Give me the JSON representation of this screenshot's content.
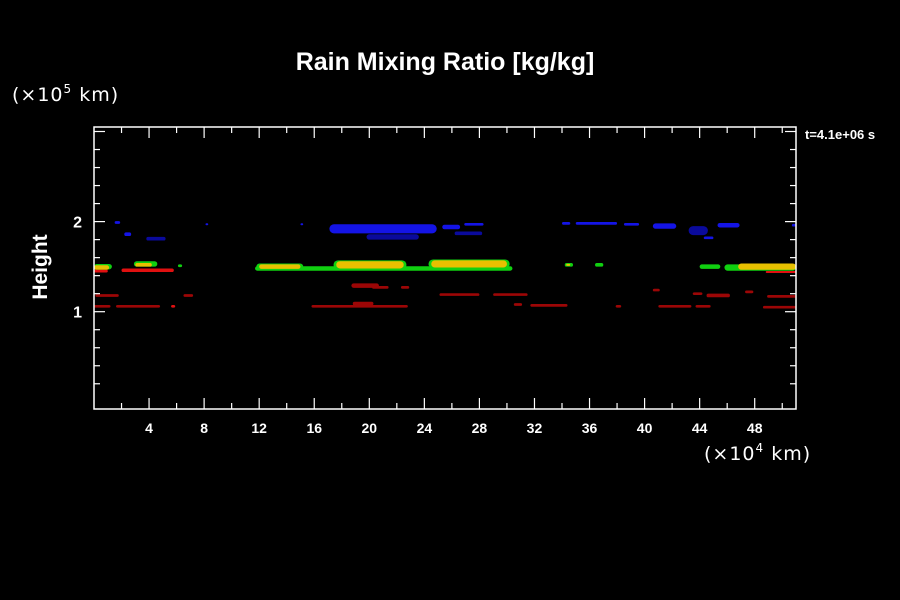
{
  "chart_data": {
    "type": "heatmap",
    "title": "Rain Mixing Ratio [kg/kg]",
    "xlabel_prefix": "(×10",
    "xlabel_exp": "4",
    "xlabel_suffix": " km)",
    "ylabel": "Height",
    "yunit_prefix": "(×10",
    "yunit_exp": "5",
    "yunit_suffix": " km)",
    "annotation": "t=4.1e+06 s",
    "xlim": [
      0,
      51
    ],
    "ylim": [
      -0.08,
      3.05
    ],
    "xticks": [
      "4",
      "8",
      "12",
      "16",
      "20",
      "24",
      "28",
      "32",
      "36",
      "40",
      "44",
      "48"
    ],
    "yticks": [
      "1",
      "2"
    ],
    "colors": {
      "blue": "#1414e6",
      "darkblue": "#0a0a9c",
      "green": "#10d010",
      "yellow": "#e8c000",
      "red": "#e01010",
      "darkred": "#9c0606",
      "axis": "#ffffff",
      "background": "#000000"
    },
    "features": [
      {
        "x0": 17.1,
        "x1": 24.9,
        "y": 1.92,
        "h": 0.1,
        "c": "blue"
      },
      {
        "x0": 19.8,
        "x1": 23.6,
        "y": 1.83,
        "h": 0.06,
        "c": "darkblue"
      },
      {
        "x0": 3.8,
        "x1": 5.2,
        "y": 1.81,
        "h": 0.04,
        "c": "darkblue"
      },
      {
        "x0": 1.5,
        "x1": 1.9,
        "y": 1.99,
        "h": 0.03,
        "c": "blue"
      },
      {
        "x0": 2.2,
        "x1": 2.7,
        "y": 1.86,
        "h": 0.04,
        "c": "blue"
      },
      {
        "x0": 8.1,
        "x1": 8.3,
        "y": 1.97,
        "h": 0.02,
        "c": "blue"
      },
      {
        "x0": 15.0,
        "x1": 15.2,
        "y": 1.97,
        "h": 0.02,
        "c": "blue"
      },
      {
        "x0": 25.3,
        "x1": 26.6,
        "y": 1.94,
        "h": 0.05,
        "c": "blue"
      },
      {
        "x0": 26.9,
        "x1": 28.3,
        "y": 1.97,
        "h": 0.03,
        "c": "blue"
      },
      {
        "x0": 26.2,
        "x1": 28.2,
        "y": 1.87,
        "h": 0.04,
        "c": "darkblue"
      },
      {
        "x0": 34.0,
        "x1": 34.6,
        "y": 1.98,
        "h": 0.03,
        "c": "blue"
      },
      {
        "x0": 35.0,
        "x1": 38.0,
        "y": 1.98,
        "h": 0.03,
        "c": "blue"
      },
      {
        "x0": 38.5,
        "x1": 39.6,
        "y": 1.97,
        "h": 0.03,
        "c": "blue"
      },
      {
        "x0": 40.6,
        "x1": 42.3,
        "y": 1.95,
        "h": 0.06,
        "c": "blue"
      },
      {
        "x0": 43.2,
        "x1": 44.6,
        "y": 1.9,
        "h": 0.1,
        "c": "darkblue"
      },
      {
        "x0": 44.3,
        "x1": 45.0,
        "y": 1.82,
        "h": 0.03,
        "c": "blue"
      },
      {
        "x0": 45.3,
        "x1": 46.9,
        "y": 1.96,
        "h": 0.05,
        "c": "blue"
      },
      {
        "x0": 50.7,
        "x1": 51.0,
        "y": 1.96,
        "h": 0.03,
        "c": "blue"
      },
      {
        "x0": 0.0,
        "x1": 1.0,
        "y": 1.45,
        "h": 0.03,
        "c": "red"
      },
      {
        "x0": 0.0,
        "x1": 1.3,
        "y": 1.5,
        "h": 0.06,
        "c": "green"
      },
      {
        "x0": 0.0,
        "x1": 1.1,
        "y": 1.49,
        "h": 0.05,
        "c": "yellow"
      },
      {
        "x0": 2.0,
        "x1": 5.8,
        "y": 1.46,
        "h": 0.04,
        "c": "red"
      },
      {
        "x0": 2.9,
        "x1": 4.6,
        "y": 1.53,
        "h": 0.06,
        "c": "green"
      },
      {
        "x0": 3.0,
        "x1": 4.2,
        "y": 1.52,
        "h": 0.04,
        "c": "yellow"
      },
      {
        "x0": 6.1,
        "x1": 6.4,
        "y": 1.51,
        "h": 0.03,
        "c": "green"
      },
      {
        "x0": 11.7,
        "x1": 30.4,
        "y": 1.48,
        "h": 0.05,
        "c": "green"
      },
      {
        "x0": 11.8,
        "x1": 15.2,
        "y": 1.5,
        "h": 0.07,
        "c": "green"
      },
      {
        "x0": 12.0,
        "x1": 15.0,
        "y": 1.5,
        "h": 0.05,
        "c": "yellow"
      },
      {
        "x0": 17.4,
        "x1": 22.7,
        "y": 1.52,
        "h": 0.1,
        "c": "green"
      },
      {
        "x0": 17.6,
        "x1": 22.5,
        "y": 1.52,
        "h": 0.08,
        "c": "yellow"
      },
      {
        "x0": 24.3,
        "x1": 30.2,
        "y": 1.53,
        "h": 0.1,
        "c": "green"
      },
      {
        "x0": 24.5,
        "x1": 30.0,
        "y": 1.53,
        "h": 0.08,
        "c": "yellow"
      },
      {
        "x0": 34.2,
        "x1": 34.8,
        "y": 1.52,
        "h": 0.04,
        "c": "green"
      },
      {
        "x0": 34.3,
        "x1": 34.6,
        "y": 1.52,
        "h": 0.02,
        "c": "yellow"
      },
      {
        "x0": 36.4,
        "x1": 37.0,
        "y": 1.52,
        "h": 0.04,
        "c": "green"
      },
      {
        "x0": 44.0,
        "x1": 45.5,
        "y": 1.5,
        "h": 0.05,
        "c": "green"
      },
      {
        "x0": 45.8,
        "x1": 51.0,
        "y": 1.49,
        "h": 0.07,
        "c": "green"
      },
      {
        "x0": 46.8,
        "x1": 51.0,
        "y": 1.5,
        "h": 0.07,
        "c": "yellow"
      },
      {
        "x0": 48.8,
        "x1": 51.0,
        "y": 1.44,
        "h": 0.02,
        "c": "red"
      },
      {
        "x0": 0.1,
        "x1": 1.8,
        "y": 1.18,
        "h": 0.03,
        "c": "darkred"
      },
      {
        "x0": 6.5,
        "x1": 7.2,
        "y": 1.18,
        "h": 0.03,
        "c": "darkred"
      },
      {
        "x0": 18.7,
        "x1": 20.7,
        "y": 1.29,
        "h": 0.05,
        "c": "darkred"
      },
      {
        "x0": 20.2,
        "x1": 21.4,
        "y": 1.27,
        "h": 0.03,
        "c": "darkred"
      },
      {
        "x0": 22.3,
        "x1": 22.9,
        "y": 1.27,
        "h": 0.03,
        "c": "darkred"
      },
      {
        "x0": 25.1,
        "x1": 28.0,
        "y": 1.19,
        "h": 0.03,
        "c": "darkred"
      },
      {
        "x0": 29.0,
        "x1": 31.5,
        "y": 1.19,
        "h": 0.03,
        "c": "darkred"
      },
      {
        "x0": 40.6,
        "x1": 41.1,
        "y": 1.24,
        "h": 0.03,
        "c": "darkred"
      },
      {
        "x0": 43.5,
        "x1": 44.2,
        "y": 1.2,
        "h": 0.03,
        "c": "darkred"
      },
      {
        "x0": 44.5,
        "x1": 46.2,
        "y": 1.18,
        "h": 0.04,
        "c": "darkred"
      },
      {
        "x0": 47.3,
        "x1": 47.9,
        "y": 1.22,
        "h": 0.03,
        "c": "darkred"
      },
      {
        "x0": 48.9,
        "x1": 51.0,
        "y": 1.17,
        "h": 0.03,
        "c": "darkred"
      },
      {
        "x0": 0.0,
        "x1": 1.2,
        "y": 1.06,
        "h": 0.03,
        "c": "darkred"
      },
      {
        "x0": 1.6,
        "x1": 4.8,
        "y": 1.06,
        "h": 0.03,
        "c": "darkred"
      },
      {
        "x0": 5.6,
        "x1": 5.9,
        "y": 1.06,
        "h": 0.03,
        "c": "red"
      },
      {
        "x0": 15.8,
        "x1": 22.8,
        "y": 1.06,
        "h": 0.03,
        "c": "darkred"
      },
      {
        "x0": 18.8,
        "x1": 20.3,
        "y": 1.09,
        "h": 0.04,
        "c": "darkred"
      },
      {
        "x0": 30.5,
        "x1": 31.1,
        "y": 1.08,
        "h": 0.03,
        "c": "darkred"
      },
      {
        "x0": 31.7,
        "x1": 34.4,
        "y": 1.07,
        "h": 0.03,
        "c": "darkred"
      },
      {
        "x0": 37.9,
        "x1": 38.3,
        "y": 1.06,
        "h": 0.03,
        "c": "darkred"
      },
      {
        "x0": 41.0,
        "x1": 43.4,
        "y": 1.06,
        "h": 0.03,
        "c": "darkred"
      },
      {
        "x0": 43.7,
        "x1": 44.8,
        "y": 1.06,
        "h": 0.03,
        "c": "darkred"
      },
      {
        "x0": 48.6,
        "x1": 51.0,
        "y": 1.05,
        "h": 0.03,
        "c": "darkred"
      }
    ]
  }
}
